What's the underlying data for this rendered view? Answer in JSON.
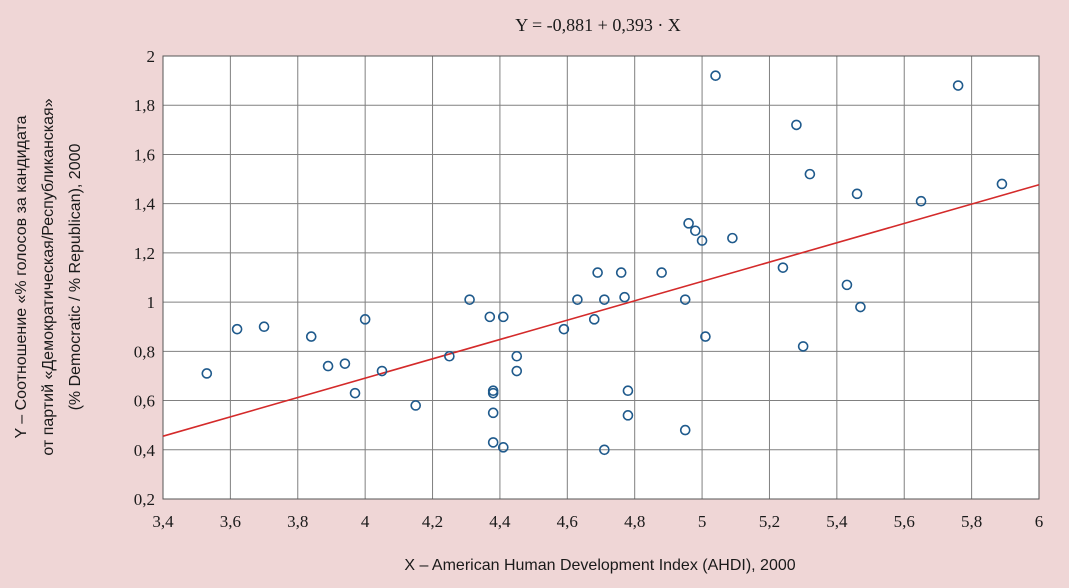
{
  "chart_data": {
    "type": "scatter",
    "title": "Y = -0,881 + 0,393 · X",
    "xlabel": "X – American Human Development Index (AHDI), 2000",
    "ylabel_lines": [
      "Y – Соотношение  «% голосов за кандидата",
      "от партий «Демократическая/Республиканская»",
      "(% Democratic / % Republican), 2000"
    ],
    "xlim": [
      3.4,
      6
    ],
    "ylim": [
      0.2,
      2
    ],
    "xticks": [
      3.4,
      3.6,
      3.8,
      4,
      4.2,
      4.4,
      4.6,
      4.8,
      5,
      5.2,
      5.4,
      5.6,
      5.8,
      6
    ],
    "yticks": [
      0.2,
      0.4,
      0.6,
      0.8,
      1,
      1.2,
      1.4,
      1.6,
      1.8,
      2
    ],
    "xtick_labels": [
      "3,4",
      "3,6",
      "3,8",
      "4",
      "4,2",
      "4,4",
      "4,6",
      "4,8",
      "5",
      "5,2",
      "5,4",
      "5,6",
      "5,8",
      "6"
    ],
    "ytick_labels": [
      "0,2",
      "0,4",
      "0,6",
      "0,8",
      "1",
      "1,2",
      "1,4",
      "1,6",
      "1,8",
      "2"
    ],
    "grid": true,
    "points": [
      [
        3.53,
        0.71
      ],
      [
        3.62,
        0.89
      ],
      [
        3.7,
        0.9
      ],
      [
        3.84,
        0.86
      ],
      [
        3.89,
        0.74
      ],
      [
        3.94,
        0.75
      ],
      [
        3.97,
        0.63
      ],
      [
        4.0,
        0.93
      ],
      [
        4.05,
        0.72
      ],
      [
        4.15,
        0.58
      ],
      [
        4.25,
        0.78
      ],
      [
        4.31,
        1.01
      ],
      [
        4.37,
        0.94
      ],
      [
        4.41,
        0.94
      ],
      [
        4.38,
        0.64
      ],
      [
        4.38,
        0.63
      ],
      [
        4.38,
        0.55
      ],
      [
        4.38,
        0.43
      ],
      [
        4.41,
        0.41
      ],
      [
        4.45,
        0.78
      ],
      [
        4.45,
        0.72
      ],
      [
        4.59,
        0.89
      ],
      [
        4.63,
        1.01
      ],
      [
        4.68,
        0.93
      ],
      [
        4.69,
        1.12
      ],
      [
        4.71,
        1.01
      ],
      [
        4.71,
        0.4
      ],
      [
        4.76,
        1.12
      ],
      [
        4.77,
        1.02
      ],
      [
        4.78,
        0.64
      ],
      [
        4.78,
        0.54
      ],
      [
        4.88,
        1.12
      ],
      [
        4.95,
        1.01
      ],
      [
        4.95,
        0.48
      ],
      [
        4.96,
        1.32
      ],
      [
        4.98,
        1.29
      ],
      [
        5.0,
        1.25
      ],
      [
        5.01,
        0.86
      ],
      [
        5.04,
        1.92
      ],
      [
        5.09,
        1.26
      ],
      [
        5.24,
        1.14
      ],
      [
        5.28,
        1.72
      ],
      [
        5.3,
        0.82
      ],
      [
        5.32,
        1.52
      ],
      [
        5.43,
        1.07
      ],
      [
        5.46,
        1.44
      ],
      [
        5.47,
        0.98
      ],
      [
        5.65,
        1.41
      ],
      [
        5.76,
        1.88
      ],
      [
        5.89,
        1.48
      ]
    ],
    "trendline": {
      "intercept": -0.881,
      "slope": 0.393
    },
    "colors": {
      "marker": "#1f5a8c",
      "trendline": "#d42a2a",
      "grid": "#808080",
      "plot_bg": "#ffffff",
      "page_bg": "#efd6d6"
    }
  }
}
